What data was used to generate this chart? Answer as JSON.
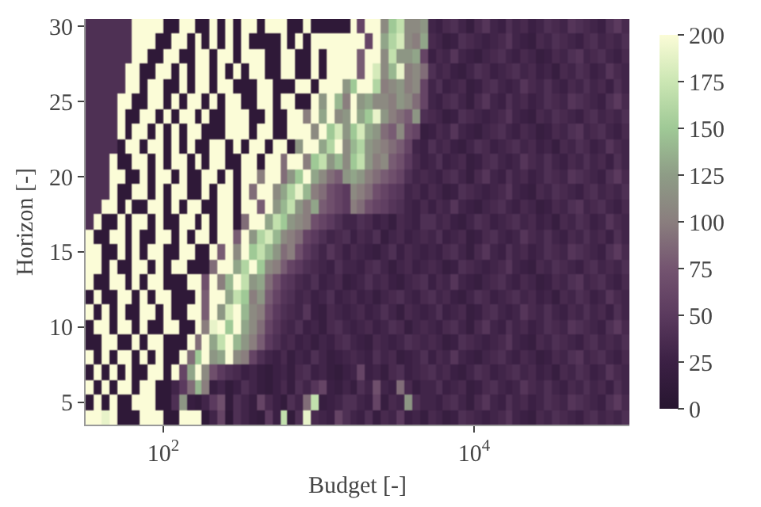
{
  "chart_data": {
    "type": "heatmap",
    "xlabel": "Budget [-]",
    "ylabel": "Horizon [-]",
    "log": "x",
    "x": [
      33.5,
      37.6,
      42.2,
      47.3,
      53.1,
      59.6,
      66.8,
      75.0,
      84.1,
      94.4,
      106,
      119,
      133,
      150,
      168,
      188,
      211,
      237,
      266,
      299,
      335,
      376,
      422,
      473,
      531,
      596,
      668,
      750,
      841,
      944,
      1060,
      1190,
      1330,
      1500,
      1680,
      1880,
      2110,
      2370,
      2660,
      2990,
      3350,
      3760,
      4220,
      4730,
      5310,
      5960,
      6680,
      7500,
      8410,
      9440,
      10600,
      11900,
      13300,
      15000,
      16800,
      18800,
      21100,
      23700,
      26600,
      29900,
      33500,
      37600,
      42200,
      47300,
      53100,
      59600,
      66800,
      75000,
      84100,
      94400
    ],
    "xlim": [
      31.6,
      100000
    ],
    "xticks": [
      {
        "value": 100,
        "label": "10$^{2}$"
      },
      {
        "value": 10000,
        "label": "10$^{4}$"
      }
    ],
    "y_categories": [
      "30",
      null,
      null,
      null,
      null,
      "25",
      null,
      null,
      null,
      null,
      "20",
      null,
      null,
      null,
      null,
      "15",
      null,
      null,
      null,
      null,
      "10",
      null,
      null,
      null,
      null,
      "5",
      null
    ],
    "clim": [
      0,
      200
    ],
    "cticks": [
      0,
      25,
      50,
      75,
      100,
      125,
      150,
      175,
      200
    ],
    "cells": [
      [
        40,
        40,
        40,
        40,
        40,
        40,
        200,
        200,
        200,
        200,
        10,
        10,
        200,
        200,
        10,
        10,
        200,
        10,
        200,
        10,
        200,
        200,
        10,
        200,
        200,
        200,
        10,
        10,
        200,
        10,
        10,
        10,
        10,
        10,
        200,
        60,
        200,
        200,
        110,
        150,
        170,
        110,
        110,
        120,
        30,
        25,
        35,
        40,
        30,
        20,
        35,
        45,
        30,
        25,
        40,
        30,
        35,
        25,
        30,
        40,
        35,
        30,
        45,
        40,
        35,
        30,
        25,
        40,
        50,
        35
      ],
      [
        40,
        40,
        40,
        40,
        40,
        40,
        200,
        200,
        200,
        10,
        10,
        200,
        200,
        10,
        200,
        10,
        200,
        10,
        200,
        10,
        200,
        10,
        10,
        10,
        10,
        200,
        10,
        200,
        10,
        200,
        200,
        200,
        200,
        200,
        200,
        200,
        60,
        200,
        130,
        160,
        180,
        110,
        100,
        130,
        35,
        30,
        20,
        25,
        40,
        35,
        30,
        25,
        30,
        35,
        45,
        30,
        25,
        20,
        35,
        30,
        40,
        35,
        30,
        25,
        35,
        40,
        30,
        35,
        30,
        40
      ],
      [
        40,
        40,
        40,
        40,
        40,
        40,
        200,
        200,
        10,
        10,
        200,
        200,
        10,
        10,
        200,
        200,
        10,
        200,
        200,
        10,
        200,
        200,
        200,
        10,
        10,
        200,
        200,
        10,
        10,
        200,
        10,
        200,
        200,
        200,
        200,
        80,
        200,
        200,
        110,
        170,
        120,
        120,
        130,
        60,
        25,
        35,
        30,
        45,
        30,
        25,
        20,
        30,
        35,
        40,
        30,
        25,
        35,
        30,
        20,
        25,
        35,
        30,
        40,
        45,
        30,
        35,
        40,
        30,
        25,
        35
      ],
      [
        40,
        40,
        40,
        40,
        40,
        200,
        200,
        10,
        10,
        200,
        200,
        10,
        200,
        10,
        200,
        200,
        10,
        200,
        10,
        200,
        10,
        200,
        200,
        10,
        10,
        200,
        200,
        10,
        10,
        200,
        10,
        200,
        200,
        200,
        200,
        80,
        200,
        180,
        110,
        140,
        190,
        100,
        110,
        90,
        40,
        30,
        35,
        25,
        20,
        30,
        40,
        35,
        25,
        30,
        35,
        40,
        30,
        35,
        25,
        30,
        20,
        35,
        30,
        40,
        35,
        25,
        30,
        45,
        35,
        30
      ],
      [
        40,
        40,
        40,
        40,
        40,
        200,
        200,
        10,
        200,
        200,
        10,
        10,
        200,
        10,
        200,
        200,
        10,
        200,
        200,
        10,
        10,
        10,
        200,
        200,
        10,
        10,
        10,
        200,
        200,
        10,
        200,
        200,
        200,
        120,
        150,
        200,
        200,
        160,
        100,
        110,
        120,
        100,
        110,
        60,
        30,
        40,
        25,
        30,
        35,
        20,
        25,
        35,
        40,
        30,
        25,
        30,
        45,
        35,
        30,
        40,
        30,
        25,
        35,
        30,
        40,
        30,
        35,
        25,
        40,
        30
      ],
      [
        40,
        40,
        40,
        40,
        200,
        200,
        10,
        10,
        200,
        200,
        10,
        200,
        10,
        200,
        200,
        10,
        200,
        10,
        200,
        200,
        10,
        10,
        200,
        200,
        10,
        200,
        200,
        10,
        10,
        200,
        120,
        200,
        140,
        100,
        200,
        120,
        130,
        110,
        110,
        100,
        120,
        110,
        90,
        60,
        30,
        25,
        35,
        40,
        30,
        20,
        35,
        45,
        30,
        25,
        40,
        30,
        35,
        25,
        30,
        40,
        35,
        30,
        45,
        40,
        35,
        30,
        25,
        40,
        50,
        35
      ],
      [
        40,
        40,
        40,
        40,
        200,
        10,
        10,
        200,
        200,
        10,
        200,
        10,
        200,
        200,
        10,
        200,
        10,
        10,
        200,
        200,
        200,
        10,
        10,
        200,
        10,
        10,
        200,
        200,
        100,
        200,
        130,
        200,
        110,
        120,
        200,
        130,
        150,
        190,
        120,
        100,
        90,
        80,
        120,
        40,
        35,
        30,
        20,
        25,
        40,
        35,
        30,
        25,
        30,
        35,
        45,
        30,
        25,
        20,
        35,
        30,
        40,
        35,
        30,
        25,
        35,
        40,
        30,
        35,
        30,
        40
      ],
      [
        40,
        40,
        40,
        40,
        200,
        10,
        200,
        200,
        10,
        200,
        10,
        200,
        10,
        200,
        200,
        10,
        10,
        10,
        200,
        200,
        200,
        10,
        200,
        200,
        10,
        10,
        200,
        200,
        200,
        110,
        200,
        150,
        180,
        120,
        150,
        180,
        130,
        120,
        90,
        80,
        110,
        70,
        60,
        20,
        25,
        35,
        30,
        45,
        30,
        25,
        20,
        30,
        35,
        40,
        30,
        25,
        35,
        30,
        20,
        25,
        35,
        30,
        40,
        45,
        30,
        35,
        40,
        30,
        25,
        35
      ],
      [
        40,
        40,
        40,
        40,
        10,
        200,
        200,
        10,
        200,
        200,
        10,
        200,
        10,
        200,
        10,
        10,
        200,
        200,
        10,
        200,
        10,
        200,
        200,
        10,
        200,
        200,
        10,
        120,
        200,
        200,
        130,
        160,
        200,
        110,
        140,
        160,
        120,
        110,
        100,
        90,
        80,
        60,
        30,
        25,
        40,
        30,
        35,
        25,
        20,
        30,
        40,
        35,
        25,
        30,
        35,
        40,
        30,
        35,
        25,
        30,
        20,
        35,
        30,
        40,
        35,
        25,
        30,
        45,
        35,
        30
      ],
      [
        40,
        40,
        40,
        200,
        10,
        10,
        200,
        200,
        10,
        200,
        10,
        200,
        200,
        10,
        200,
        10,
        200,
        200,
        10,
        10,
        200,
        200,
        10,
        200,
        200,
        90,
        200,
        200,
        100,
        150,
        170,
        120,
        140,
        110,
        150,
        170,
        120,
        100,
        110,
        80,
        70,
        50,
        35,
        25,
        30,
        40,
        25,
        30,
        35,
        20,
        25,
        35,
        40,
        30,
        25,
        30,
        45,
        35,
        30,
        40,
        30,
        25,
        35,
        30,
        40,
        30,
        35,
        25,
        40,
        30
      ],
      [
        40,
        40,
        40,
        200,
        200,
        10,
        10,
        200,
        10,
        200,
        200,
        10,
        200,
        10,
        10,
        200,
        200,
        10,
        200,
        10,
        200,
        200,
        100,
        200,
        200,
        90,
        120,
        150,
        200,
        130,
        110,
        90,
        80,
        120,
        130,
        120,
        100,
        90,
        80,
        70,
        60,
        40,
        30,
        35,
        30,
        25,
        35,
        40,
        30,
        20,
        35,
        45,
        30,
        25,
        40,
        30,
        35,
        25,
        30,
        40,
        35,
        30,
        45,
        40,
        35,
        30,
        25,
        40,
        50,
        35
      ],
      [
        40,
        40,
        40,
        200,
        10,
        10,
        200,
        200,
        10,
        200,
        10,
        200,
        200,
        10,
        10,
        200,
        10,
        200,
        200,
        10,
        200,
        90,
        200,
        200,
        110,
        130,
        160,
        190,
        140,
        100,
        90,
        70,
        60,
        50,
        110,
        100,
        90,
        70,
        60,
        50,
        45,
        30,
        35,
        25,
        35,
        30,
        20,
        25,
        40,
        35,
        30,
        25,
        30,
        35,
        45,
        30,
        25,
        20,
        35,
        30,
        40,
        35,
        30,
        25,
        35,
        40,
        30,
        35,
        30,
        40
      ],
      [
        40,
        40,
        200,
        200,
        10,
        200,
        10,
        10,
        200,
        200,
        10,
        200,
        10,
        200,
        200,
        10,
        10,
        200,
        200,
        10,
        200,
        200,
        80,
        200,
        120,
        140,
        170,
        120,
        100,
        130,
        80,
        70,
        60,
        50,
        100,
        90,
        70,
        60,
        55,
        45,
        40,
        30,
        25,
        35,
        25,
        35,
        30,
        45,
        30,
        25,
        20,
        30,
        35,
        40,
        30,
        25,
        35,
        30,
        20,
        25,
        35,
        30,
        40,
        45,
        30,
        35,
        40,
        30,
        25,
        35
      ],
      [
        40,
        200,
        10,
        10,
        200,
        10,
        200,
        200,
        10,
        200,
        10,
        10,
        200,
        200,
        10,
        200,
        10,
        200,
        200,
        10,
        90,
        200,
        200,
        130,
        170,
        150,
        120,
        110,
        100,
        70,
        60,
        50,
        40,
        30,
        30,
        40,
        35,
        25,
        30,
        20,
        35,
        30,
        25,
        40,
        40,
        30,
        35,
        25,
        20,
        30,
        40,
        35,
        25,
        30,
        35,
        40,
        30,
        35,
        25,
        30,
        20,
        35,
        30,
        40,
        35,
        25,
        30,
        45,
        35,
        30
      ],
      [
        200,
        10,
        10,
        200,
        200,
        10,
        200,
        10,
        10,
        200,
        200,
        10,
        200,
        10,
        200,
        200,
        10,
        200,
        200,
        80,
        200,
        120,
        160,
        180,
        140,
        110,
        100,
        90,
        60,
        50,
        40,
        30,
        35,
        40,
        25,
        35,
        30,
        40,
        20,
        30,
        35,
        25,
        30,
        35,
        30,
        40,
        25,
        30,
        35,
        20,
        25,
        35,
        40,
        30,
        25,
        30,
        45,
        35,
        30,
        40,
        30,
        25,
        35,
        30,
        40,
        30,
        35,
        25,
        40,
        30
      ],
      [
        200,
        200,
        10,
        10,
        200,
        10,
        200,
        10,
        200,
        200,
        10,
        10,
        200,
        200,
        10,
        10,
        200,
        80,
        200,
        110,
        200,
        150,
        170,
        140,
        120,
        90,
        100,
        70,
        50,
        40,
        30,
        45,
        35,
        25,
        35,
        30,
        25,
        20,
        30,
        40,
        25,
        35,
        30,
        25,
        30,
        25,
        35,
        40,
        30,
        20,
        35,
        45,
        30,
        25,
        40,
        30,
        35,
        25,
        30,
        40,
        35,
        30,
        45,
        40,
        35,
        30,
        25,
        40,
        50,
        35
      ],
      [
        200,
        200,
        10,
        200,
        10,
        10,
        200,
        200,
        10,
        200,
        10,
        200,
        200,
        10,
        10,
        10,
        90,
        200,
        200,
        130,
        160,
        200,
        150,
        110,
        100,
        80,
        60,
        50,
        40,
        35,
        30,
        25,
        40,
        30,
        30,
        25,
        35,
        40,
        30,
        20,
        30,
        35,
        25,
        30,
        35,
        30,
        20,
        25,
        40,
        35,
        30,
        25,
        30,
        35,
        45,
        30,
        25,
        20,
        35,
        30,
        40,
        35,
        30,
        25,
        35,
        40,
        30,
        35,
        30,
        40
      ],
      [
        200,
        10,
        10,
        200,
        200,
        10,
        200,
        10,
        200,
        200,
        10,
        10,
        10,
        200,
        200,
        70,
        200,
        100,
        140,
        200,
        170,
        120,
        130,
        90,
        70,
        50,
        45,
        35,
        30,
        40,
        25,
        30,
        35,
        20,
        25,
        30,
        40,
        30,
        35,
        25,
        20,
        30,
        35,
        40,
        25,
        35,
        30,
        45,
        30,
        25,
        20,
        30,
        35,
        40,
        30,
        25,
        35,
        30,
        20,
        25,
        35,
        30,
        40,
        45,
        30,
        35,
        40,
        30,
        25,
        35
      ],
      [
        10,
        200,
        10,
        10,
        200,
        200,
        10,
        200,
        10,
        200,
        200,
        10,
        10,
        10,
        200,
        80,
        200,
        200,
        130,
        170,
        150,
        100,
        120,
        80,
        60,
        45,
        40,
        30,
        35,
        25,
        30,
        40,
        25,
        30,
        35,
        25,
        30,
        20,
        30,
        35,
        40,
        30,
        25,
        35,
        40,
        30,
        35,
        25,
        20,
        30,
        40,
        35,
        25,
        30,
        35,
        40,
        30,
        35,
        25,
        30,
        20,
        35,
        30,
        40,
        35,
        25,
        30,
        45,
        35,
        30
      ],
      [
        200,
        10,
        200,
        10,
        200,
        10,
        10,
        200,
        200,
        10,
        200,
        10,
        10,
        200,
        200,
        80,
        200,
        120,
        180,
        200,
        140,
        110,
        100,
        70,
        50,
        40,
        35,
        30,
        45,
        25,
        20,
        35,
        30,
        25,
        30,
        35,
        25,
        30,
        40,
        30,
        20,
        35,
        30,
        25,
        30,
        40,
        25,
        30,
        35,
        20,
        25,
        35,
        40,
        30,
        25,
        30,
        45,
        35,
        30,
        40,
        30,
        25,
        35,
        30,
        40,
        30,
        35,
        25,
        40,
        30
      ],
      [
        10,
        200,
        200,
        10,
        200,
        200,
        10,
        200,
        10,
        10,
        200,
        200,
        10,
        10,
        200,
        100,
        190,
        200,
        150,
        200,
        130,
        110,
        90,
        60,
        45,
        35,
        30,
        40,
        25,
        30,
        20,
        35,
        40,
        30,
        25,
        30,
        35,
        25,
        30,
        40,
        35,
        20,
        30,
        35,
        30,
        25,
        35,
        40,
        30,
        20,
        35,
        45,
        30,
        25,
        40,
        30,
        35,
        25,
        30,
        40,
        35,
        30,
        45,
        40,
        35,
        30,
        25,
        40,
        50,
        35
      ],
      [
        10,
        10,
        200,
        200,
        10,
        10,
        200,
        10,
        200,
        200,
        10,
        10,
        10,
        200,
        90,
        200,
        130,
        170,
        200,
        140,
        120,
        100,
        80,
        50,
        40,
        30,
        35,
        25,
        30,
        20,
        30,
        25,
        35,
        40,
        30,
        25,
        20,
        35,
        30,
        25,
        30,
        40,
        35,
        30,
        35,
        30,
        20,
        25,
        40,
        35,
        30,
        25,
        30,
        35,
        45,
        30,
        25,
        20,
        35,
        30,
        40,
        35,
        30,
        25,
        35,
        40,
        30,
        35,
        30,
        40
      ],
      [
        200,
        10,
        200,
        10,
        200,
        200,
        10,
        200,
        10,
        200,
        10,
        10,
        200,
        90,
        150,
        200,
        120,
        130,
        200,
        110,
        100,
        60,
        40,
        30,
        25,
        35,
        20,
        30,
        25,
        40,
        30,
        20,
        25,
        30,
        35,
        30,
        25,
        40,
        30,
        35,
        20,
        25,
        30,
        40,
        25,
        35,
        30,
        45,
        30,
        25,
        20,
        30,
        35,
        40,
        30,
        25,
        35,
        30,
        20,
        25,
        35,
        30,
        40,
        45,
        30,
        35,
        40,
        30,
        25,
        35
      ],
      [
        10,
        200,
        10,
        200,
        10,
        200,
        10,
        10,
        200,
        200,
        10,
        200,
        60,
        130,
        200,
        110,
        70,
        50,
        40,
        35,
        25,
        30,
        20,
        15,
        25,
        30,
        20,
        35,
        40,
        25,
        30,
        20,
        15,
        25,
        30,
        60,
        25,
        30,
        20,
        35,
        40,
        25,
        30,
        35,
        40,
        30,
        35,
        25,
        20,
        30,
        40,
        35,
        25,
        30,
        35,
        40,
        30,
        35,
        25,
        30,
        20,
        35,
        30,
        40,
        35,
        25,
        30,
        45,
        35,
        30
      ],
      [
        200,
        10,
        200,
        10,
        200,
        200,
        10,
        200,
        200,
        10,
        10,
        30,
        50,
        90,
        140,
        100,
        20,
        30,
        15,
        25,
        40,
        30,
        20,
        15,
        25,
        35,
        20,
        40,
        30,
        45,
        60,
        25,
        20,
        30,
        20,
        40,
        30,
        70,
        30,
        25,
        90,
        35,
        20,
        30,
        30,
        40,
        25,
        30,
        35,
        20,
        25,
        35,
        40,
        30,
        25,
        30,
        45,
        35,
        30,
        40,
        30,
        25,
        35,
        30,
        40,
        30,
        35,
        25,
        40,
        30
      ],
      [
        10,
        200,
        10,
        200,
        10,
        10,
        200,
        200,
        200,
        10,
        10,
        40,
        120,
        20,
        15,
        30,
        50,
        70,
        15,
        40,
        30,
        20,
        60,
        35,
        25,
        15,
        40,
        30,
        90,
        170,
        20,
        25,
        30,
        40,
        40,
        30,
        25,
        60,
        20,
        35,
        30,
        120,
        40,
        30,
        30,
        25,
        35,
        40,
        30,
        20,
        35,
        45,
        30,
        25,
        40,
        30,
        35,
        25,
        30,
        40,
        35,
        30,
        45,
        40,
        35,
        30,
        25,
        40,
        50,
        35
      ],
      [
        200,
        200,
        190,
        200,
        10,
        10,
        10,
        200,
        200,
        200,
        10,
        10,
        200,
        200,
        200,
        10,
        30,
        60,
        10,
        40,
        30,
        20,
        15,
        50,
        25,
        170,
        15,
        40,
        190,
        35,
        30,
        25,
        60,
        40,
        30,
        25,
        40,
        20,
        35,
        30,
        50,
        25,
        30,
        20,
        35,
        30,
        20,
        25,
        40,
        35,
        30,
        25,
        30,
        35,
        45,
        30,
        25,
        20,
        35,
        30,
        40,
        35,
        30,
        25,
        35,
        40,
        30,
        35,
        30,
        40
      ]
    ]
  }
}
